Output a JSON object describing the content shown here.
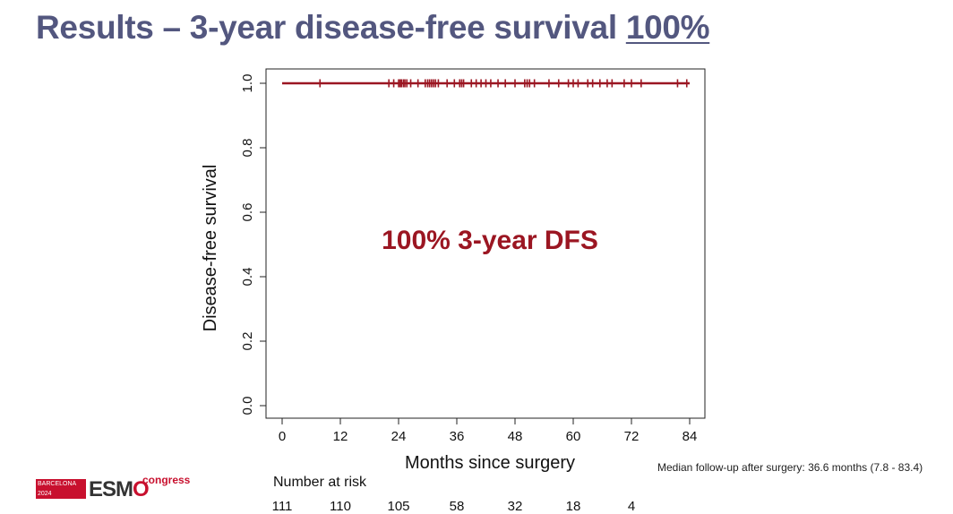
{
  "title": {
    "prefix": "Results – 3-year disease-free survival ",
    "highlight": "100%"
  },
  "chart_data": {
    "type": "line",
    "title": "",
    "xlabel": "Months since surgery",
    "ylabel": "Disease-free survival",
    "xlim": [
      0,
      84
    ],
    "ylim": [
      0.0,
      1.0
    ],
    "xticks": [
      0,
      12,
      24,
      36,
      48,
      60,
      72,
      84
    ],
    "xtick_labels": [
      "0",
      "12",
      "24",
      "36",
      "48",
      "60",
      "72",
      "84"
    ],
    "yticks": [
      0.0,
      0.2,
      0.4,
      0.6,
      0.8,
      1.0
    ],
    "ytick_labels": [
      "0.0",
      "0.2",
      "0.4",
      "0.6",
      "0.8",
      "1.0"
    ],
    "series": [
      {
        "color": "#9b1622",
        "x": [
          0,
          84
        ],
        "y": [
          1.0,
          1.0
        ],
        "censor_times": [
          7.8,
          22,
          23,
          24,
          24.3,
          24.6,
          25,
          25.3,
          25.7,
          26.5,
          28,
          29.5,
          30,
          30.4,
          30.8,
          31.2,
          31.6,
          32.2,
          34,
          35.5,
          36.6,
          37,
          37.4,
          39,
          40,
          41,
          42,
          43,
          44.5,
          46,
          48,
          50,
          50.5,
          51,
          52,
          55,
          57,
          59,
          60,
          61,
          63,
          64,
          65.5,
          67,
          68,
          70.5,
          72,
          74,
          81.5,
          83.4
        ]
      }
    ],
    "annotation": "100% 3-year DFS",
    "grid": false
  },
  "risk_table": {
    "label": "Number at risk",
    "times": [
      0,
      12,
      24,
      36,
      48,
      60,
      72
    ],
    "counts": [
      "111",
      "110",
      "105",
      "58",
      "32",
      "18",
      "4"
    ]
  },
  "footnote": "Median follow-up after surgery: 36.6 months (7.8 - 83.4)",
  "logo": {
    "city": "BARCELONA",
    "year": "2024",
    "brand_main": "ESM",
    "brand_end": "O",
    "congress": "congress"
  }
}
